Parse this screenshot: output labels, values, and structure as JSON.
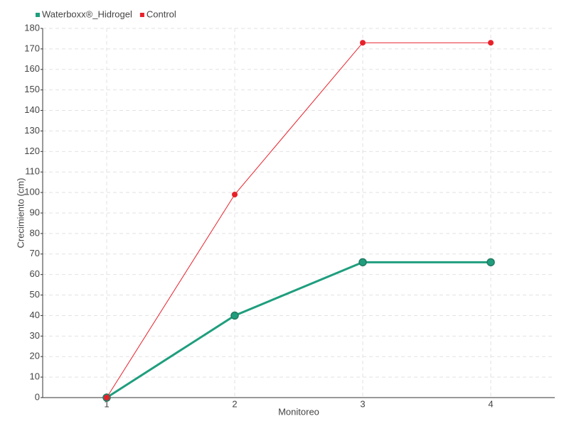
{
  "chart_data": {
    "type": "line",
    "x_label": "Monitoreo",
    "y_label": "Crecimiento (cm)",
    "categories": [
      "1",
      "2",
      "3",
      "4"
    ],
    "series": [
      {
        "name": "Waterboxx®_Hidrogel",
        "color": "#1f9e7e",
        "values": [
          0,
          40,
          66,
          66
        ]
      },
      {
        "name": "Control",
        "color": "#e8202a",
        "values": [
          0,
          99,
          173,
          173
        ]
      }
    ],
    "ylim": [
      0,
      180
    ],
    "yticks": [
      0,
      10,
      20,
      30,
      40,
      50,
      60,
      70,
      80,
      90,
      100,
      110,
      120,
      130,
      140,
      150,
      160,
      170,
      180
    ],
    "grid": true,
    "legend": "top-left"
  }
}
